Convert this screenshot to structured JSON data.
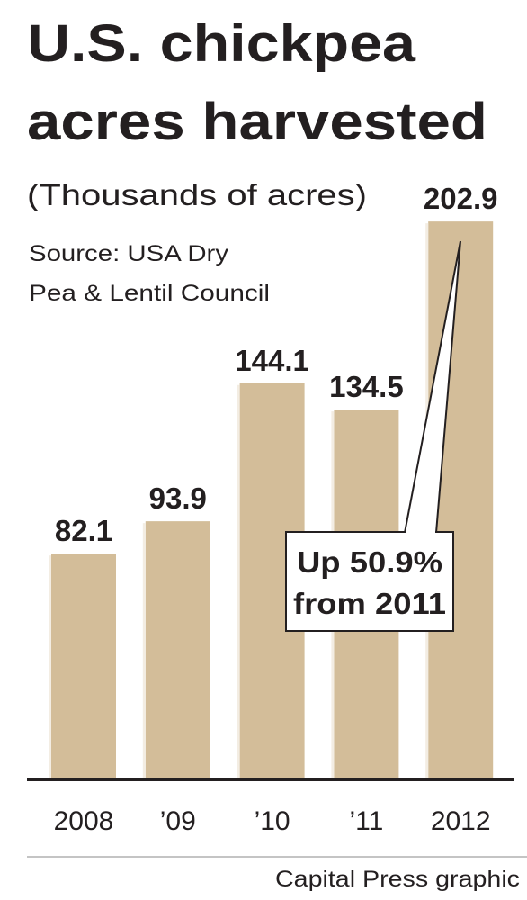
{
  "chart_data": {
    "type": "bar",
    "title": [
      "U.S. chickpea",
      "acres harvested"
    ],
    "subtitle": "(Thousands of acres)",
    "source": [
      "Source: USA Dry",
      "Pea & Lentil Council"
    ],
    "categories": [
      "2008",
      "’09",
      "’10",
      "’11",
      "2012"
    ],
    "values": [
      82.1,
      93.9,
      144.1,
      134.5,
      202.9
    ],
    "color": "#d3bd99",
    "annotation": [
      "Up 50.9%",
      "from 2011"
    ],
    "credit": "Capital Press graphic"
  }
}
